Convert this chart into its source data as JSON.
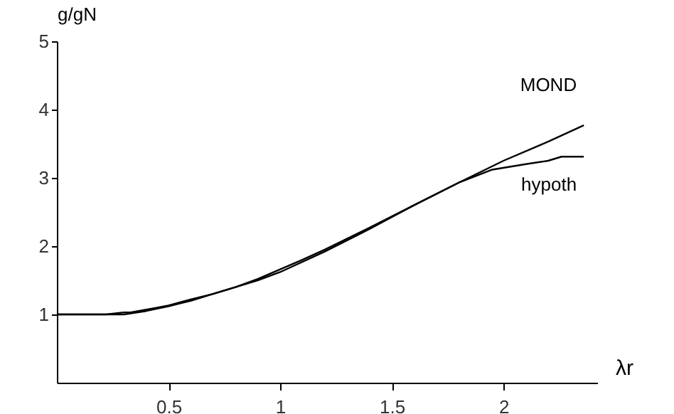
{
  "chart_data": {
    "type": "line",
    "xlabel": "λr",
    "ylabel": "g/gN",
    "xlim": [
      0,
      2.42
    ],
    "ylim": [
      0,
      5
    ],
    "xticks": [
      0.5,
      1,
      1.5,
      2
    ],
    "yticks": [
      1,
      2,
      3,
      4,
      5
    ],
    "grid": false,
    "legend": false,
    "series": [
      {
        "name": "MOND",
        "color": "#000000",
        "x": [
          0,
          0.3,
          0.4,
          0.5,
          0.6,
          0.7,
          0.8,
          0.9,
          1,
          1.1,
          1.2,
          1.4,
          1.6,
          1.8,
          2,
          2.2,
          2.36
        ],
        "values": [
          1,
          1,
          1.05,
          1.12,
          1.2,
          1.3,
          1.4,
          1.52,
          1.66,
          1.8,
          1.95,
          2.27,
          2.6,
          2.93,
          3.25,
          3.53,
          3.77
        ]
      },
      {
        "name": "hypoth",
        "color": "#000000",
        "x": [
          0,
          0.22,
          0.3,
          0.33,
          0.45,
          0.5,
          0.6,
          0.7,
          0.8,
          0.9,
          1,
          1.2,
          1.4,
          1.6,
          1.8,
          1.95,
          2.1,
          2.2,
          2.26,
          2.36
        ],
        "values": [
          1,
          1,
          1.03,
          1.03,
          1.1,
          1.13,
          1.22,
          1.3,
          1.4,
          1.5,
          1.62,
          1.92,
          2.25,
          2.6,
          2.93,
          3.12,
          3.2,
          3.25,
          3.31,
          3.31
        ]
      }
    ]
  }
}
